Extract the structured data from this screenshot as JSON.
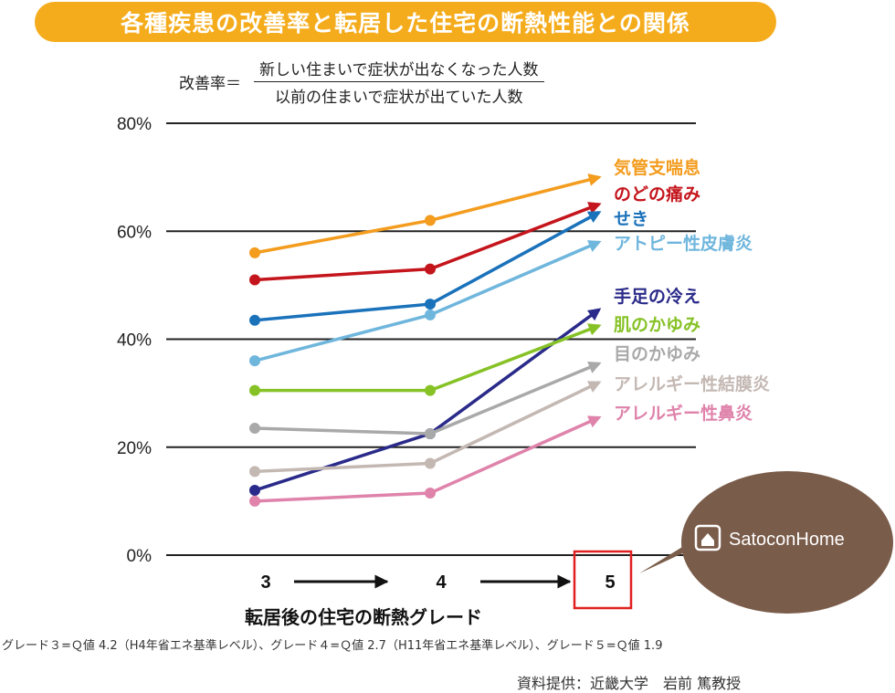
{
  "title": "各種疾患の改善率と転居した住宅の断熱性能との関係",
  "formula": {
    "lhs": "改善率＝",
    "numerator": "新しい住まいで症状が出なくなった人数",
    "denominator": "以前の住まいで症状が出ていた人数"
  },
  "chart_data": {
    "type": "line",
    "title": "各種疾患の改善率と転居した住宅の断熱性能との関係",
    "xlabel": "転居後の住宅の断熱グレード",
    "ylabel": "改善率",
    "categories": [
      "3",
      "4",
      "5"
    ],
    "ylim": [
      0,
      80
    ],
    "yticks": [
      0,
      20,
      40,
      60,
      80
    ],
    "ytick_labels": [
      "0%",
      "20%",
      "40%",
      "60%",
      "80%"
    ],
    "grid": true,
    "series": [
      {
        "name": "気管支喘息",
        "color": "#f39c1e",
        "values": [
          56,
          62,
          70
        ]
      },
      {
        "name": "のどの痛み",
        "color": "#c4151c",
        "values": [
          51,
          53,
          65
        ]
      },
      {
        "name": "せき",
        "color": "#1a72bb",
        "values": [
          43.5,
          46.5,
          63.5
        ]
      },
      {
        "name": "アトピー性皮膚炎",
        "color": "#6fb6dd",
        "values": [
          36,
          44.5,
          58
        ]
      },
      {
        "name": "手足の冷え",
        "color": "#2a2a8a",
        "values": [
          12,
          22.5,
          45.5
        ]
      },
      {
        "name": "肌のかゆみ",
        "color": "#86c226",
        "values": [
          30.5,
          30.5,
          42.5
        ]
      },
      {
        "name": "目のかゆみ",
        "color": "#a9a9a9",
        "values": [
          23.5,
          22.5,
          35.5
        ]
      },
      {
        "name": "アレルギー性結膜炎",
        "color": "#c4b8b3",
        "values": [
          15.5,
          17,
          32
        ]
      },
      {
        "name": "アレルギー性鼻炎",
        "color": "#df83ab",
        "values": [
          10,
          11.5,
          25.5
        ]
      }
    ],
    "highlight_category": "5"
  },
  "note": "グレード３=Ｑ値 4.2（H4年省エネ基準レベル）、グレード４=Ｑ値 2.7（H11年省エネ基準レベル）、グレード５=Ｑ値 1.9",
  "source": "資料提供：近畿大学　岩前 篤教授",
  "logo": {
    "text": "SatoconHome",
    "bubble_color": "#7a5c4a"
  }
}
